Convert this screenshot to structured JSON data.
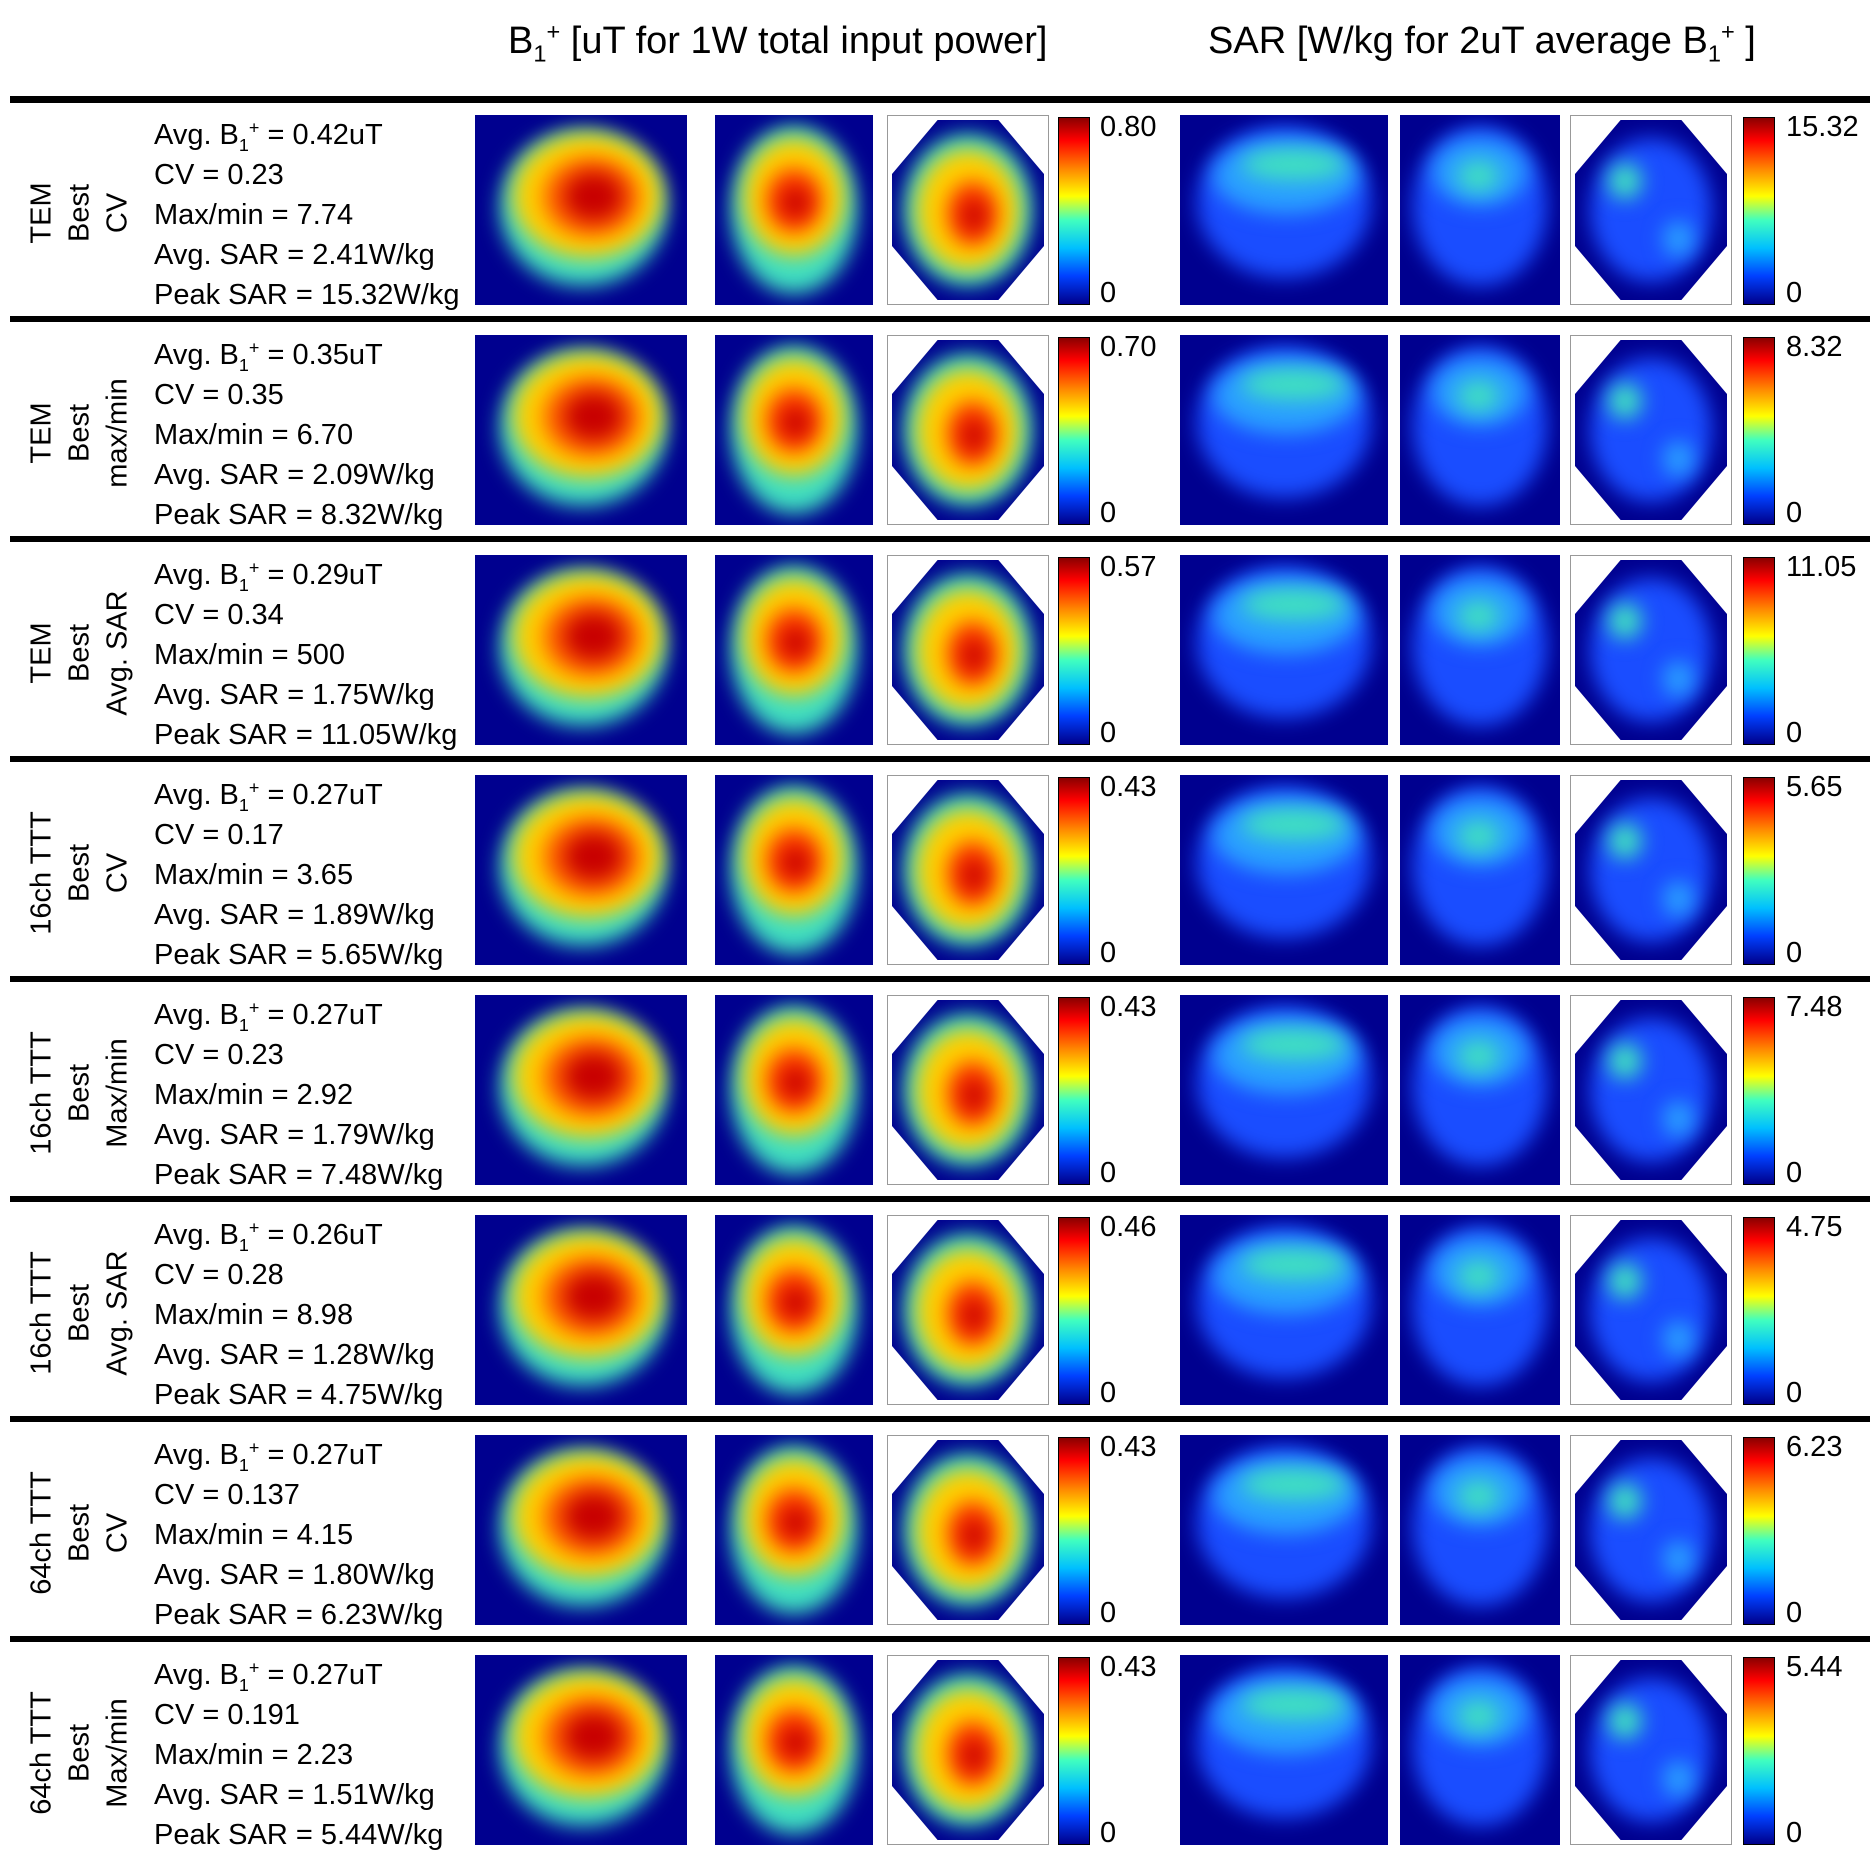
{
  "header": {
    "b1": {
      "sym": "B",
      "sub": "1",
      "sup": "+",
      "rest": " [uT for 1W total input power]"
    },
    "sar": {
      "pre": "SAR [W/kg for 2uT average B",
      "sub": "1",
      "sup": "+",
      "post": " ]"
    }
  },
  "rows": [
    {
      "coil": "TEM",
      "best": "Best",
      "metric": "CV",
      "avg_b1": "0.42uT",
      "cv": "0.23",
      "maxmin": "7.74",
      "avg_sar": "2.41W/kg",
      "peak_sar": "15.32W/kg",
      "b1_max": "0.80",
      "b1_min": "0",
      "sar_max": "15.32",
      "sar_min": "0"
    },
    {
      "coil": "TEM",
      "best": "Best",
      "metric": "max/min",
      "avg_b1": "0.35uT",
      "cv": "0.35",
      "maxmin": "6.70",
      "avg_sar": "2.09W/kg",
      "peak_sar": "8.32W/kg",
      "b1_max": "0.70",
      "b1_min": "0",
      "sar_max": "8.32",
      "sar_min": "0"
    },
    {
      "coil": "TEM",
      "best": "Best",
      "metric": "Avg. SAR",
      "avg_b1": "0.29uT",
      "cv": "0.34",
      "maxmin": "500",
      "avg_sar": "1.75W/kg",
      "peak_sar": "11.05W/kg",
      "b1_max": "0.57",
      "b1_min": "0",
      "sar_max": "11.05",
      "sar_min": "0"
    },
    {
      "coil": "16ch TTT",
      "best": "Best",
      "metric": "CV",
      "avg_b1": "0.27uT",
      "cv": "0.17",
      "maxmin": "3.65",
      "avg_sar": "1.89W/kg",
      "peak_sar": "5.65W/kg",
      "b1_max": "0.43",
      "b1_min": "0",
      "sar_max": "5.65",
      "sar_min": "0"
    },
    {
      "coil": "16ch TTT",
      "best": "Best",
      "metric": "Max/min",
      "avg_b1": "0.27uT",
      "cv": "0.23",
      "maxmin": "2.92",
      "avg_sar": "1.79W/kg",
      "peak_sar": "7.48W/kg",
      "b1_max": "0.43",
      "b1_min": "0",
      "sar_max": "7.48",
      "sar_min": "0"
    },
    {
      "coil": "16ch TTT",
      "best": "Best",
      "metric": "Avg. SAR",
      "avg_b1": "0.26uT",
      "cv": "0.28",
      "maxmin": "8.98",
      "avg_sar": "1.28W/kg",
      "peak_sar": "4.75W/kg",
      "b1_max": "0.46",
      "b1_min": "0",
      "sar_max": "4.75",
      "sar_min": "0"
    },
    {
      "coil": "64ch TTT",
      "best": "Best",
      "metric": "CV",
      "avg_b1": "0.27uT",
      "cv": "0.137",
      "maxmin": "4.15",
      "avg_sar": "1.80W/kg",
      "peak_sar": "6.23W/kg",
      "b1_max": "0.43",
      "b1_min": "0",
      "sar_max": "6.23",
      "sar_min": "0"
    },
    {
      "coil": "64ch TTT",
      "best": "Best",
      "metric": "Max/min",
      "avg_b1": "0.27uT",
      "cv": "0.191",
      "maxmin": "2.23",
      "avg_sar": "1.51W/kg",
      "peak_sar": "5.44W/kg",
      "b1_max": "0.43",
      "b1_min": "0",
      "sar_max": "5.44",
      "sar_min": "0"
    }
  ],
  "labels": {
    "avg_b1": "Avg. B",
    "b1_sub": "1",
    "b1_sup": "+",
    "cv": "CV = ",
    "maxmin": "Max/min = ",
    "avg_sar": "Avg. SAR = ",
    "peak_sar": "Peak SAR = ",
    "eq": " = "
  },
  "colors": {
    "background_blue": "#00008f",
    "hot": "#c80000",
    "warm": "#ffd000",
    "mid": "#40e0c0",
    "cool": "#2a7fff"
  }
}
